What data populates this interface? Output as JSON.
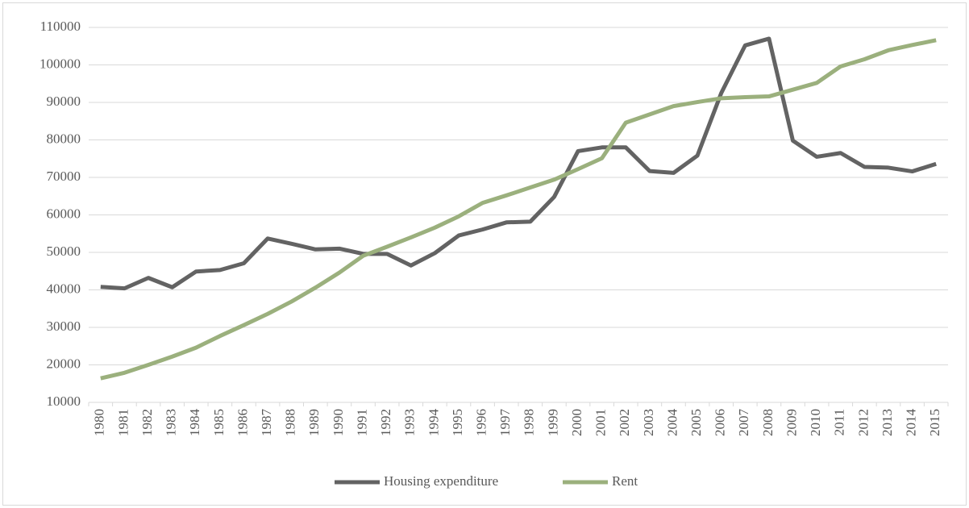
{
  "chart_data": {
    "type": "line",
    "categories": [
      "1980",
      "1981",
      "1982",
      "1983",
      "1984",
      "1985",
      "1986",
      "1987",
      "1988",
      "1989",
      "1990",
      "1991",
      "1992",
      "1993",
      "1994",
      "1995",
      "1996",
      "1997",
      "1998",
      "1999",
      "2000",
      "2001",
      "2002",
      "2003",
      "2004",
      "2005",
      "2006",
      "2007",
      "2008",
      "2009",
      "2010",
      "2011",
      "2012",
      "2013",
      "2014",
      "2015"
    ],
    "series": [
      {
        "name": "Housing expenditure",
        "color": "#636363",
        "values": [
          40800,
          40400,
          43200,
          40700,
          44900,
          45300,
          47100,
          53700,
          52300,
          50800,
          51000,
          49600,
          49600,
          46500,
          49800,
          54500,
          56100,
          58000,
          58200,
          64800,
          77000,
          78000,
          78000,
          71700,
          71200,
          75800,
          92500,
          105200,
          107000,
          79800,
          75500,
          76500,
          72800,
          72600,
          71600,
          73600
        ]
      },
      {
        "name": "Rent",
        "color": "#9bb07d",
        "values": [
          16400,
          17900,
          20000,
          22200,
          24600,
          27700,
          30600,
          33600,
          36900,
          40600,
          44600,
          49100,
          51500,
          54000,
          56600,
          59600,
          63200,
          65200,
          67300,
          69400,
          72200,
          75100,
          84600,
          86800,
          89000,
          90100,
          91100,
          91400,
          91600,
          93400,
          95200,
          99600,
          101500,
          103900,
          105300,
          106600
        ]
      }
    ],
    "ylim": [
      10000,
      110000
    ],
    "yticks": [
      10000,
      20000,
      30000,
      40000,
      50000,
      60000,
      70000,
      80000,
      90000,
      100000,
      110000
    ],
    "grid": true,
    "legend": "bottom"
  }
}
